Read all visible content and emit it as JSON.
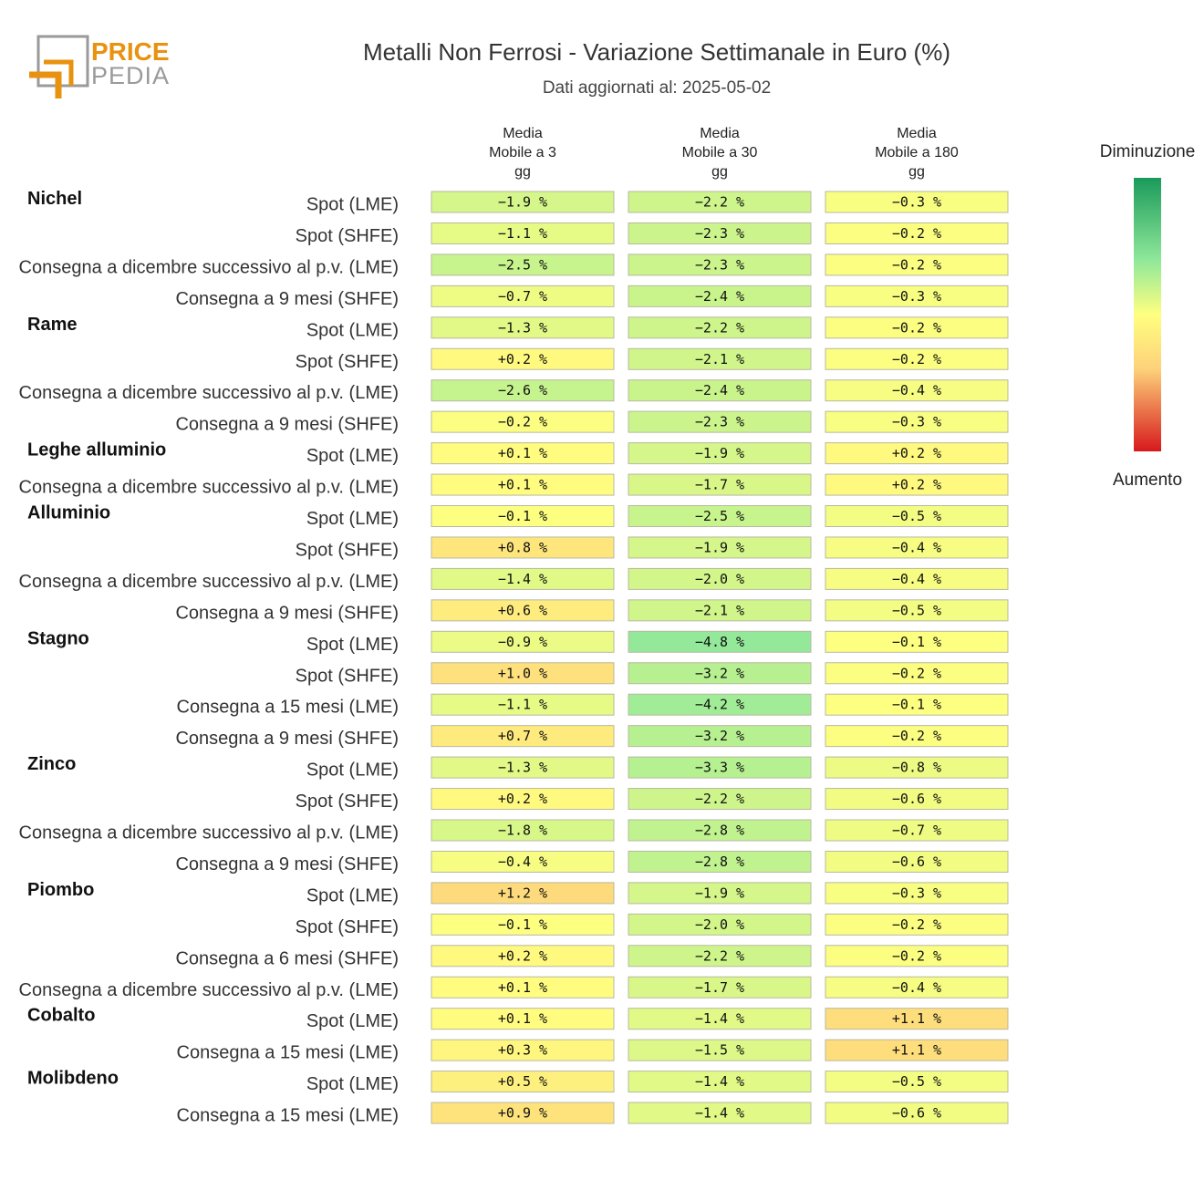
{
  "header": {
    "title": "Metalli Non Ferrosi - Variazione Settimanale in Euro (%)",
    "subtitle": "Dati aggiornati al: 2025-05-02",
    "logo_line1": "PRICE",
    "logo_line2": "PEDIA"
  },
  "colors": {
    "logo_orange": "#e8920f",
    "logo_gray": "#9a9a9a",
    "scale_top": "#1a9a5a",
    "scale_mid": "#ffff80",
    "scale_bottom": "#d7191c"
  },
  "chart_data": {
    "type": "heatmap",
    "title": "Metalli Non Ferrosi - Variazione Settimanale in Euro (%)",
    "columns": [
      [
        "Media",
        "Mobile a 3",
        "gg"
      ],
      [
        "Media",
        "Mobile a 30",
        "gg"
      ],
      [
        "Media",
        "Mobile a 180",
        "gg"
      ]
    ],
    "legend": {
      "top": "Diminuzione",
      "bottom": "Aumento"
    },
    "unit": "%",
    "rows": [
      {
        "group": "Nichel",
        "label": "Spot (LME)",
        "values": [
          -1.9,
          -2.2,
          -0.3
        ]
      },
      {
        "group": "",
        "label": "Spot (SHFE)",
        "values": [
          -1.1,
          -2.3,
          -0.2
        ]
      },
      {
        "group": "",
        "label": "Consegna a dicembre successivo al p.v. (LME)",
        "values": [
          -2.5,
          -2.3,
          -0.2
        ]
      },
      {
        "group": "",
        "label": "Consegna a 9 mesi (SHFE)",
        "values": [
          -0.7,
          -2.4,
          -0.3
        ]
      },
      {
        "group": "Rame",
        "label": "Spot (LME)",
        "values": [
          -1.3,
          -2.2,
          -0.2
        ]
      },
      {
        "group": "",
        "label": "Spot (SHFE)",
        "values": [
          0.2,
          -2.1,
          -0.2
        ]
      },
      {
        "group": "",
        "label": "Consegna a dicembre successivo al p.v. (LME)",
        "values": [
          -2.6,
          -2.4,
          -0.4
        ]
      },
      {
        "group": "",
        "label": "Consegna a 9 mesi (SHFE)",
        "values": [
          -0.2,
          -2.3,
          -0.3
        ]
      },
      {
        "group": "Leghe alluminio",
        "label": "Spot (LME)",
        "values": [
          0.1,
          -1.9,
          0.2
        ]
      },
      {
        "group": "",
        "label": "Consegna a dicembre successivo al p.v. (LME)",
        "values": [
          0.1,
          -1.7,
          0.2
        ]
      },
      {
        "group": "Alluminio",
        "label": "Spot (LME)",
        "values": [
          -0.1,
          -2.5,
          -0.5
        ]
      },
      {
        "group": "",
        "label": "Spot (SHFE)",
        "values": [
          0.8,
          -1.9,
          -0.4
        ]
      },
      {
        "group": "",
        "label": "Consegna a dicembre successivo al p.v. (LME)",
        "values": [
          -1.4,
          -2.0,
          -0.4
        ]
      },
      {
        "group": "",
        "label": "Consegna a 9 mesi (SHFE)",
        "values": [
          0.6,
          -2.1,
          -0.5
        ]
      },
      {
        "group": "Stagno",
        "label": "Spot (LME)",
        "values": [
          -0.9,
          -4.8,
          -0.1
        ]
      },
      {
        "group": "",
        "label": "Spot (SHFE)",
        "values": [
          1.0,
          -3.2,
          -0.2
        ]
      },
      {
        "group": "",
        "label": "Consegna a 15 mesi (LME)",
        "values": [
          -1.1,
          -4.2,
          -0.1
        ]
      },
      {
        "group": "",
        "label": "Consegna a 9 mesi (SHFE)",
        "values": [
          0.7,
          -3.2,
          -0.2
        ]
      },
      {
        "group": "Zinco",
        "label": "Spot (LME)",
        "values": [
          -1.3,
          -3.3,
          -0.8
        ]
      },
      {
        "group": "",
        "label": "Spot (SHFE)",
        "values": [
          0.2,
          -2.2,
          -0.6
        ]
      },
      {
        "group": "",
        "label": "Consegna a dicembre successivo al p.v. (LME)",
        "values": [
          -1.8,
          -2.8,
          -0.7
        ]
      },
      {
        "group": "",
        "label": "Consegna a 9 mesi (SHFE)",
        "values": [
          -0.4,
          -2.8,
          -0.6
        ]
      },
      {
        "group": "Piombo",
        "label": "Spot (LME)",
        "values": [
          1.2,
          -1.9,
          -0.3
        ]
      },
      {
        "group": "",
        "label": "Spot (SHFE)",
        "values": [
          -0.1,
          -2.0,
          -0.2
        ]
      },
      {
        "group": "",
        "label": "Consegna a 6 mesi (SHFE)",
        "values": [
          0.2,
          -2.2,
          -0.2
        ]
      },
      {
        "group": "",
        "label": "Consegna a dicembre successivo al p.v. (LME)",
        "values": [
          0.1,
          -1.7,
          -0.4
        ]
      },
      {
        "group": "Cobalto",
        "label": "Spot (LME)",
        "values": [
          0.1,
          -1.4,
          1.1
        ]
      },
      {
        "group": "",
        "label": "Consegna a 15 mesi (LME)",
        "values": [
          0.3,
          -1.5,
          1.1
        ]
      },
      {
        "group": "Molibdeno",
        "label": "Spot (LME)",
        "values": [
          0.5,
          -1.4,
          -0.5
        ]
      },
      {
        "group": "",
        "label": "Consegna a 15 mesi (LME)",
        "values": [
          0.9,
          -1.4,
          -0.6
        ]
      }
    ]
  }
}
